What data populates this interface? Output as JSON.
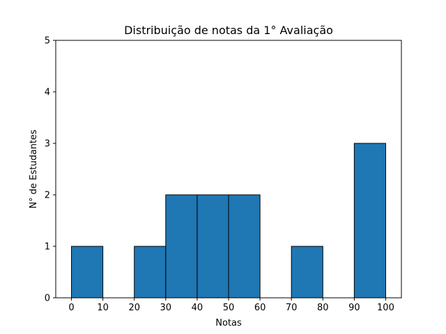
{
  "chart_data": {
    "type": "bar",
    "title": "Distribuição de notas da 1° Avaliação",
    "xlabel": "Notas",
    "ylabel": "N° de Estudantes",
    "bins": [
      {
        "x0": 0,
        "x1": 10,
        "count": 1
      },
      {
        "x0": 10,
        "x1": 20,
        "count": 0
      },
      {
        "x0": 20,
        "x1": 30,
        "count": 1
      },
      {
        "x0": 30,
        "x1": 40,
        "count": 2
      },
      {
        "x0": 40,
        "x1": 50,
        "count": 2
      },
      {
        "x0": 50,
        "x1": 60,
        "count": 2
      },
      {
        "x0": 60,
        "x1": 70,
        "count": 0
      },
      {
        "x0": 70,
        "x1": 80,
        "count": 1
      },
      {
        "x0": 80,
        "x1": 90,
        "count": 0
      },
      {
        "x0": 90,
        "x1": 100,
        "count": 3
      }
    ],
    "xticks": [
      "0",
      "10",
      "20",
      "30",
      "40",
      "50",
      "60",
      "70",
      "80",
      "90",
      "100"
    ],
    "yticks": [
      "0",
      "1",
      "2",
      "3",
      "4",
      "5"
    ],
    "xlim": [
      -5,
      105
    ],
    "ylim": [
      0,
      5
    ],
    "grid": false,
    "bar_color": "#1f77b4",
    "edge_color": "#000000"
  }
}
